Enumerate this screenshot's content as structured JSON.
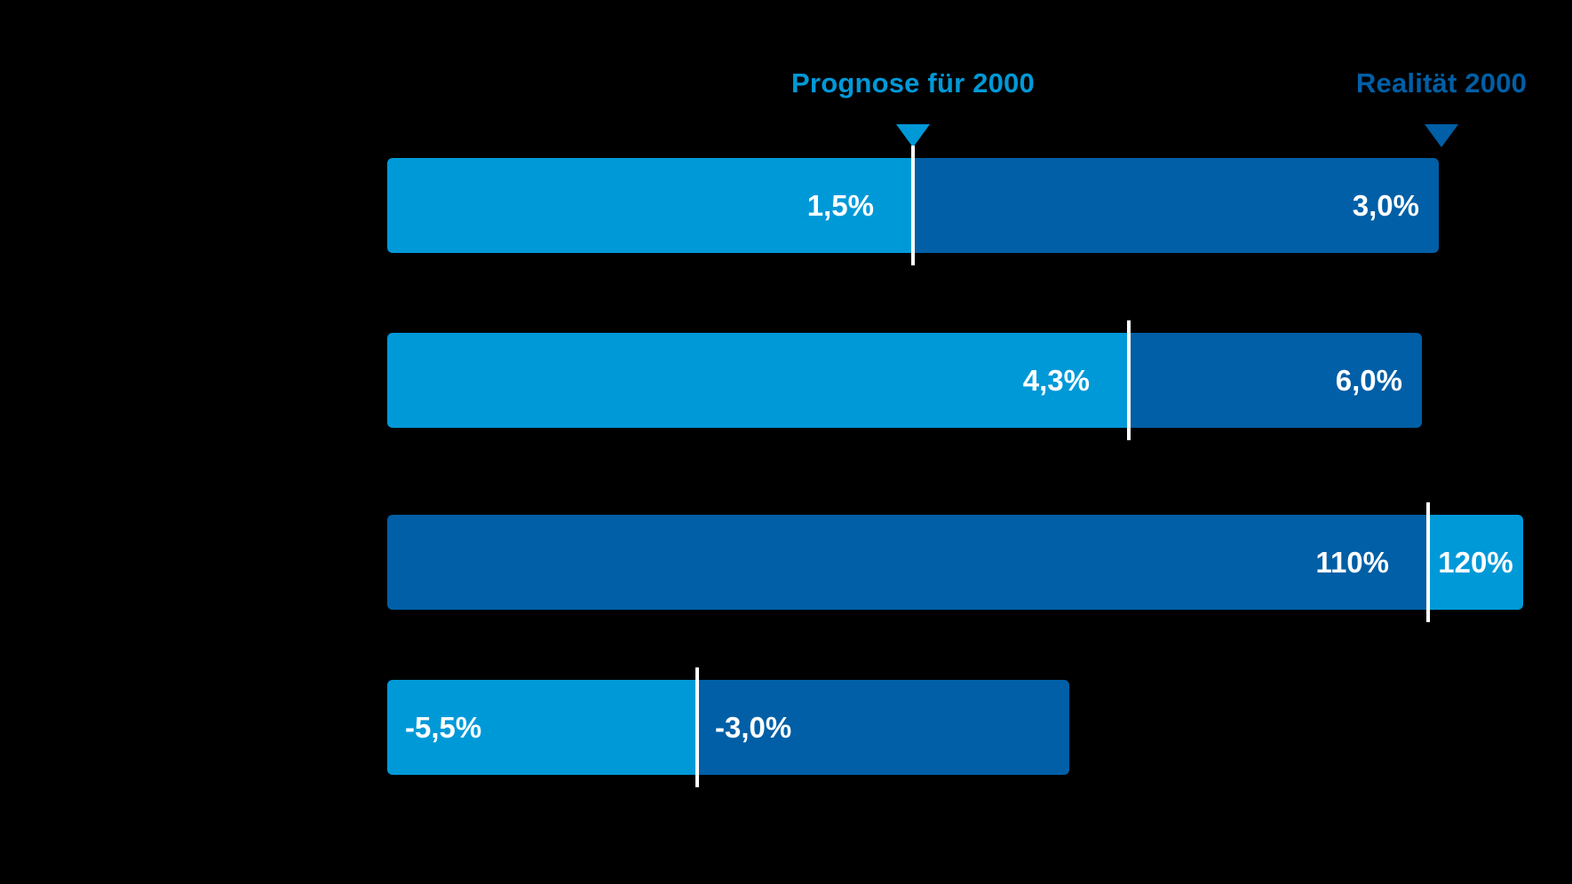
{
  "colors": {
    "light_blue": "#0099D8",
    "dark_blue": "#005FA6",
    "label_text": "#FFFFFF",
    "background": "#000000",
    "separator": "#FFFFFF"
  },
  "legend": {
    "prognose_label": "Prognose für 2000",
    "realitaet_label": "Realität 2000"
  },
  "chart_data": {
    "type": "bar",
    "orientation": "horizontal",
    "title": "",
    "categories": [
      "",
      "",
      "",
      ""
    ],
    "series": [
      {
        "name": "Prognose für 2000",
        "color_role": "light_blue",
        "values": [
          1.5,
          4.3,
          120,
          -5.5
        ],
        "labels": [
          "1,5%",
          "4,3%",
          "120%",
          "-5,5%"
        ]
      },
      {
        "name": "Realität 2000",
        "color_role": "dark_blue",
        "values": [
          3.0,
          6.0,
          110,
          -3.0
        ],
        "labels": [
          "3,0%",
          "6,0%",
          "110%",
          "-3,0%"
        ]
      }
    ],
    "value_format": "percent, German decimal comma",
    "legend_position": "top",
    "grid": false,
    "axes_visible": false,
    "row_scales_independent": true,
    "rows_render": [
      {
        "segments": [
          {
            "role": "light",
            "series": "Prognose für 2000",
            "span": 1.5,
            "label": "1,5%",
            "align": "right"
          },
          {
            "role": "dark",
            "series": "Realität 2000",
            "span": 1.5,
            "label": "3,0%",
            "align": "right"
          }
        ]
      },
      {
        "segments": [
          {
            "role": "light",
            "series": "Prognose für 2000",
            "span": 4.3,
            "label": "4,3%",
            "align": "right"
          },
          {
            "role": "dark",
            "series": "Realität 2000",
            "span": 1.7,
            "label": "6,0%",
            "align": "right"
          }
        ]
      },
      {
        "segments": [
          {
            "role": "dark",
            "series": "Realität 2000",
            "span": 110,
            "label": "110%",
            "align": "right"
          },
          {
            "role": "light",
            "series": "Prognose für 2000",
            "span": 10,
            "label": "120%",
            "align": "center"
          }
        ]
      },
      {
        "segments": [
          {
            "role": "light",
            "series": "Prognose für 2000",
            "span": 2.5,
            "label": "-5,5%",
            "align": "left"
          },
          {
            "role": "dark",
            "series": "Realität 2000",
            "span": 3.0,
            "label": "-3,0%",
            "align": "left"
          }
        ]
      }
    ]
  }
}
